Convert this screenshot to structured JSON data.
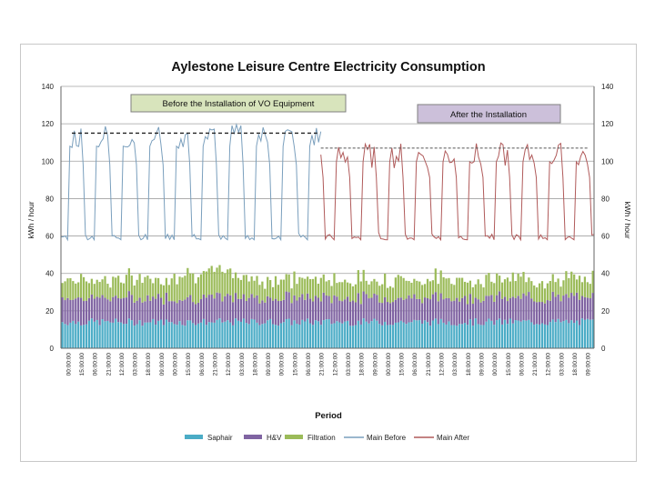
{
  "chart_data": {
    "type": "line",
    "title": "Aylestone Leisure Centre Electricity Consumption",
    "xlabel": "Period",
    "ylabel_left": "kWh / hour",
    "ylabel_right": "kWh / hour",
    "ylim": [
      0,
      140
    ],
    "yticks": [
      0,
      20,
      40,
      60,
      80,
      100,
      120,
      140
    ],
    "grid": true,
    "legend_position": "bottom",
    "x_tick_labels": [
      "00:00:00",
      "15:00:00",
      "06:00:00",
      "21:00:00",
      "12:00:00",
      "03:00:00",
      "18:00:00",
      "09:00:00",
      "00:00:00",
      "15:00:00",
      "06:00:00",
      "21:00:00",
      "12:00:00",
      "03:00:00",
      "18:00:00",
      "09:00:00",
      "00:00:00",
      "15:00:00",
      "06:00:00",
      "21:00:00",
      "12:00:00",
      "03:00:00",
      "18:00:00",
      "09:00:00",
      "00:00:00",
      "15:00:00",
      "06:00:00",
      "21:00:00",
      "12:00:00",
      "03:00:00",
      "18:00:00",
      "09:00:00",
      "00:00:00",
      "15:00:00",
      "06:00:00",
      "21:00:00",
      "12:00:00",
      "03:00:00",
      "18:00:00",
      "09:00:00"
    ],
    "annotations": {
      "before_label": "Before the Installation of VO Equipment",
      "after_label": "After the Installation",
      "before_avg_line": 115,
      "after_avg_line": 107,
      "installation_index": 117
    },
    "series": [
      {
        "name": "Saphair",
        "type": "stacked-bar",
        "color": "#4bacc6",
        "typical_value": 14
      },
      {
        "name": "H&V",
        "type": "stacked-bar",
        "color": "#8064a2",
        "typical_value": 13
      },
      {
        "name": "Filtration",
        "type": "stacked-bar",
        "color": "#9bbb59",
        "typical_value": 10
      },
      {
        "name": "Main Before",
        "type": "line",
        "color": "#7a9fbd",
        "low": 58,
        "high": 118
      },
      {
        "name": "Main After",
        "type": "line",
        "color": "#b05a5a",
        "low": 58,
        "high": 108
      }
    ]
  }
}
